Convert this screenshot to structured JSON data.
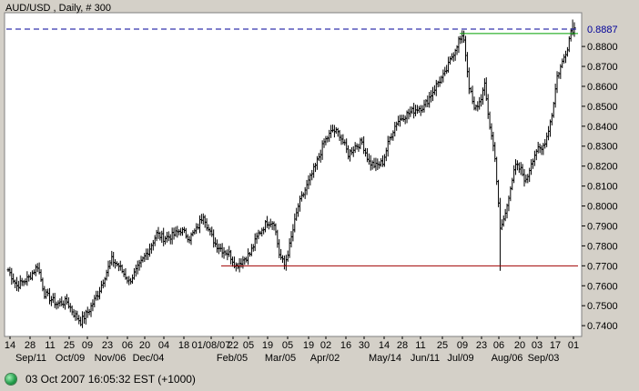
{
  "chart_data": {
    "type": "ohlc",
    "title": "AUD/USD , Daily, # 300",
    "y_axis": {
      "position": "right",
      "ylim": [
        0.7355,
        0.896
      ],
      "tick_labels": [
        "0.7400",
        "0.7500",
        "0.7600",
        "0.7700",
        "0.7800",
        "0.7900",
        "0.8000",
        "0.8100",
        "0.8200",
        "0.8300",
        "0.8400",
        "0.8500",
        "0.8600",
        "0.8700",
        "0.8800"
      ]
    },
    "x_axis": {
      "tick_labels": [
        "14",
        "28",
        "11",
        "25",
        "09",
        "23",
        "06",
        "20",
        "04",
        "18",
        "01/08/07",
        "22",
        "05",
        "19",
        "05",
        "19",
        "02",
        "16",
        "30",
        "14",
        "28",
        "11",
        "25",
        "09",
        "23",
        "06",
        "20",
        "03",
        "17",
        "01"
      ],
      "month_labels": [
        "Sep/11",
        "Oct/09",
        "Nov/06",
        "Dec/04",
        "Feb/05",
        "Mar/05",
        "Apr/02",
        "May/14",
        "Jun/11",
        "Jul/09",
        "Aug/06",
        "Sep/03"
      ]
    },
    "current_price": {
      "label": "0.8887",
      "value": 0.8887
    },
    "support_line": {
      "value": 0.77
    },
    "resistance_line": {
      "value": 0.8865
    },
    "series_anchors": [
      [
        0,
        0.768
      ],
      [
        5,
        0.76
      ],
      [
        12,
        0.764
      ],
      [
        17,
        0.77
      ],
      [
        21,
        0.756
      ],
      [
        28,
        0.751
      ],
      [
        34,
        0.752
      ],
      [
        38,
        0.746
      ],
      [
        42,
        0.742
      ],
      [
        47,
        0.748
      ],
      [
        52,
        0.756
      ],
      [
        56,
        0.765
      ],
      [
        60,
        0.773
      ],
      [
        64,
        0.77
      ],
      [
        70,
        0.762
      ],
      [
        76,
        0.77
      ],
      [
        82,
        0.779
      ],
      [
        86,
        0.786
      ],
      [
        90,
        0.784
      ],
      [
        95,
        0.785
      ],
      [
        100,
        0.788
      ],
      [
        105,
        0.784
      ],
      [
        109,
        0.788
      ],
      [
        113,
        0.796
      ],
      [
        116,
        0.788
      ],
      [
        120,
        0.781
      ],
      [
        124,
        0.778
      ],
      [
        128,
        0.776
      ],
      [
        132,
        0.77
      ],
      [
        136,
        0.773
      ],
      [
        140,
        0.776
      ],
      [
        145,
        0.786
      ],
      [
        150,
        0.792
      ],
      [
        154,
        0.792
      ],
      [
        157,
        0.776
      ],
      [
        160,
        0.77
      ],
      [
        163,
        0.78
      ],
      [
        168,
        0.8
      ],
      [
        173,
        0.81
      ],
      [
        178,
        0.82
      ],
      [
        183,
        0.832
      ],
      [
        188,
        0.838
      ],
      [
        192,
        0.836
      ],
      [
        197,
        0.826
      ],
      [
        201,
        0.83
      ],
      [
        205,
        0.832
      ],
      [
        209,
        0.822
      ],
      [
        213,
        0.82
      ],
      [
        217,
        0.822
      ],
      [
        221,
        0.834
      ],
      [
        225,
        0.842
      ],
      [
        229,
        0.845
      ],
      [
        233,
        0.847
      ],
      [
        237,
        0.849
      ],
      [
        241,
        0.85
      ],
      [
        245,
        0.856
      ],
      [
        249,
        0.862
      ],
      [
        253,
        0.866
      ],
      [
        257,
        0.875
      ],
      [
        261,
        0.883
      ],
      [
        264,
        0.884
      ],
      [
        267,
        0.86
      ],
      [
        270,
        0.848
      ],
      [
        273,
        0.852
      ],
      [
        276,
        0.86
      ],
      [
        279,
        0.84
      ],
      [
        282,
        0.825
      ],
      [
        285,
        0.788
      ],
      [
        288,
        0.796
      ],
      [
        291,
        0.81
      ],
      [
        294,
        0.82
      ],
      [
        297,
        0.818
      ],
      [
        300,
        0.812
      ],
      [
        303,
        0.822
      ],
      [
        306,
        0.828
      ],
      [
        309,
        0.828
      ],
      [
        312,
        0.835
      ],
      [
        315,
        0.846
      ],
      [
        318,
        0.865
      ],
      [
        321,
        0.872
      ],
      [
        324,
        0.88
      ],
      [
        326,
        0.888
      ],
      [
        328,
        0.889
      ]
    ],
    "spikes": [
      {
        "index": 160,
        "low": 0.7682
      },
      {
        "index": 285,
        "low": 0.7675
      },
      {
        "index": 327,
        "high": 0.8935
      }
    ]
  },
  "status": {
    "timestamp": "03 Oct 2007 16:05:32  EST (+1000)"
  }
}
